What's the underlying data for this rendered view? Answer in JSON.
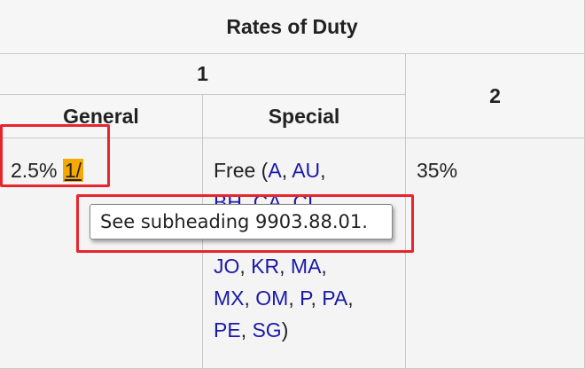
{
  "table": {
    "title": "Rates of Duty",
    "col_group_1": "1",
    "col_2": "2",
    "col_general": "General",
    "col_special": "Special",
    "general_rate": "2.5%",
    "general_note": "1/",
    "special_prefix": "Free (",
    "special_codes": [
      "A",
      "AU",
      "BH",
      "CA",
      "CL",
      "JO",
      "KR",
      "MA",
      "MX",
      "OM",
      "P",
      "PA",
      "PE",
      "SG"
    ],
    "special_suffix": ")",
    "column2_rate": "35%"
  },
  "tooltip": {
    "text": "See subheading 9903.88.01."
  },
  "colors": {
    "note_highlight": "#f5a800",
    "link": "#1a1aa6",
    "annotation_box": "#e8242c"
  }
}
